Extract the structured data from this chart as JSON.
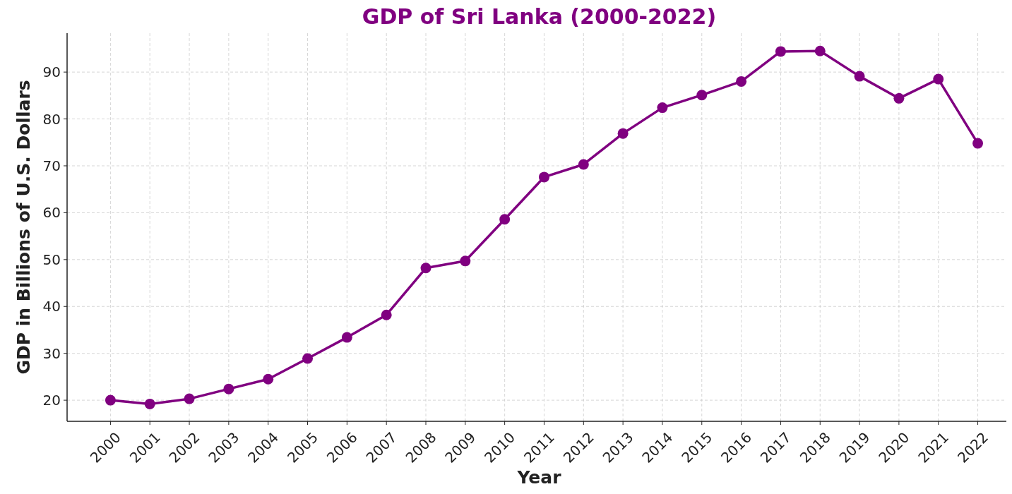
{
  "chart_data": {
    "type": "line",
    "title": "GDP of Sri Lanka (2000-2022)",
    "xlabel": "Year",
    "ylabel": "GDP in Billions of U.S. Dollars",
    "categories": [
      "2000",
      "2001",
      "2002",
      "2003",
      "2004",
      "2005",
      "2006",
      "2007",
      "2008",
      "2009",
      "2010",
      "2011",
      "2012",
      "2013",
      "2014",
      "2015",
      "2016",
      "2017",
      "2018",
      "2019",
      "2020",
      "2021",
      "2022"
    ],
    "series": [
      {
        "color": "#800080",
        "values": [
          20.0,
          19.2,
          20.3,
          22.4,
          24.5,
          28.9,
          33.4,
          38.2,
          48.2,
          49.7,
          58.6,
          67.6,
          70.3,
          76.9,
          82.4,
          85.1,
          88.0,
          94.4,
          94.5,
          89.1,
          84.4,
          88.5,
          74.8
        ]
      }
    ],
    "ylim": [
      15.5,
      98.3
    ],
    "yticks": [
      20,
      30,
      40,
      50,
      60,
      70,
      80,
      90
    ],
    "grid": true,
    "marker": "circle",
    "line_style": "solid"
  }
}
